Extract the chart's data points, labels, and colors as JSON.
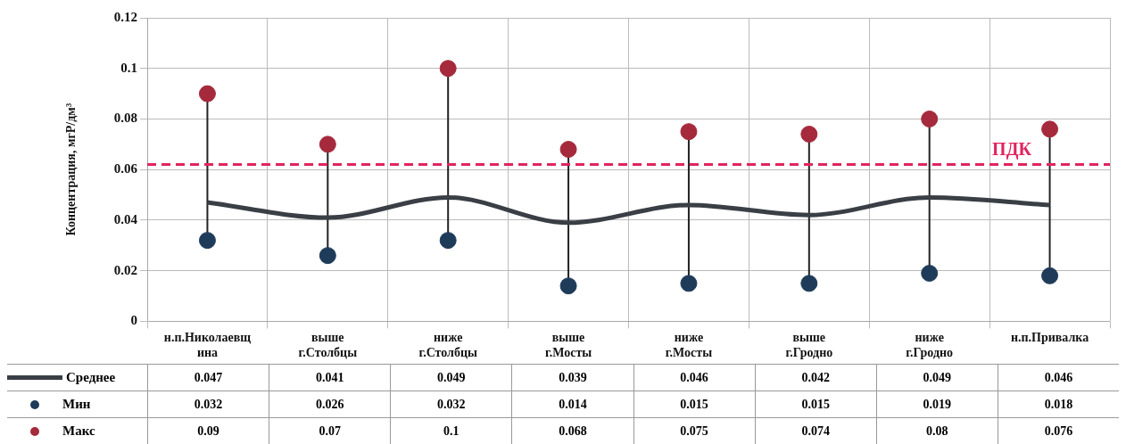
{
  "chart_data": {
    "type": "line",
    "ylabel": "Концентрация, мгР/дм³",
    "categories": [
      "н.п.Николаевщина",
      "выше г.Столбцы",
      "ниже г.Столбцы",
      "выше г.Мосты",
      "ниже г.Мосты",
      "выше г.Гродно",
      "ниже г.Гродно",
      "н.п.Привалка"
    ],
    "series": [
      {
        "name": "Среднее",
        "marker": "none",
        "color": "#3a3f46",
        "values": [
          0.047,
          0.041,
          0.049,
          0.039,
          0.046,
          0.042,
          0.049,
          0.046
        ]
      },
      {
        "name": "Мин",
        "type": "scatter",
        "marker": "circle",
        "color": "#1f3b5a",
        "values": [
          0.032,
          0.026,
          0.032,
          0.014,
          0.015,
          0.015,
          0.019,
          0.018
        ]
      },
      {
        "name": "Макс",
        "type": "scatter",
        "marker": "circle",
        "color": "#a52a3c",
        "values": [
          0.09,
          0.07,
          0.1,
          0.068,
          0.075,
          0.074,
          0.08,
          0.076
        ]
      }
    ],
    "ylim": [
      0,
      0.12
    ],
    "yticks": [
      0,
      0.02,
      0.04,
      0.06,
      0.08,
      0.1,
      0.12
    ],
    "ref_lines": [
      {
        "axis": "y",
        "value": 0.062,
        "label": "ПДК",
        "color": "#e0245e",
        "line_style": "dashed"
      }
    ],
    "grid": true,
    "legend": "bottom",
    "data_labels": true
  }
}
